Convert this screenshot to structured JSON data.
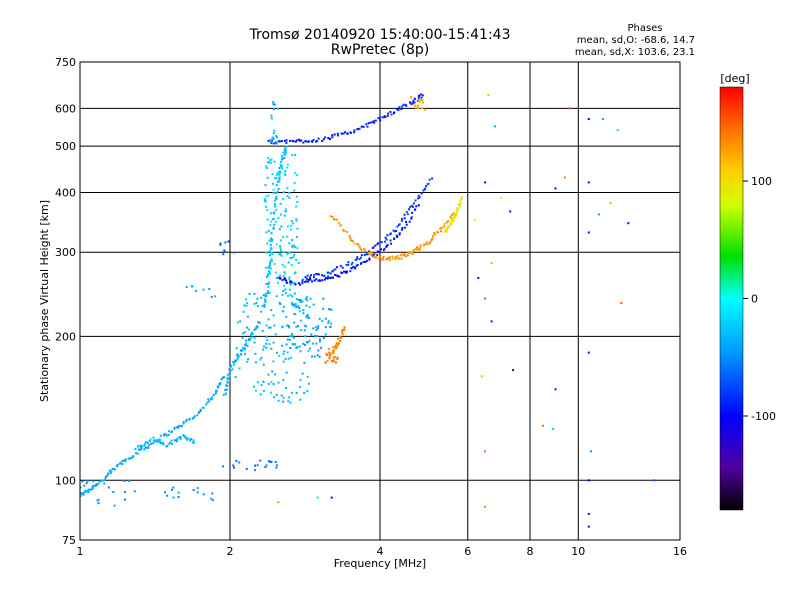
{
  "chart_data": {
    "type": "scatter",
    "title": "Tromsø 20140920 15:40:00-15:41:43",
    "subtitle": "RwPretec (8p)",
    "xlabel": "Frequency [MHz]",
    "ylabel": "Stationary phase Virtual Height [km]",
    "x_scale": "log",
    "y_scale": "log",
    "xlim": [
      1,
      16
    ],
    "ylim": [
      75,
      750
    ],
    "x_ticks": [
      1,
      2,
      4,
      6,
      8,
      10,
      16
    ],
    "y_ticks": [
      75,
      100,
      200,
      300,
      400,
      500,
      600,
      750
    ],
    "grid": true,
    "phase_stats": {
      "header": "Phases",
      "line_o": "mean, sd,O: -68.6, 14.7",
      "line_x": "mean, sd,X: 103.6, 23.1"
    },
    "colorbar": {
      "label": "[deg]",
      "range": [
        -180,
        180
      ],
      "ticks": [
        -100,
        0,
        100
      ]
    },
    "tracks": [
      {
        "x": [
          1.0,
          1.05,
          1.12,
          1.2,
          1.3,
          1.42,
          1.55,
          1.7,
          1.85,
          1.95
        ],
        "y": [
          93,
          96,
          101,
          108,
          114,
          121,
          128,
          136,
          150,
          165
        ],
        "phase": -40
      },
      {
        "x": [
          1.3,
          1.4,
          1.5,
          1.6,
          1.7
        ],
        "y": [
          117,
          122,
          118,
          124,
          120
        ],
        "phase": -30
      },
      {
        "x": [
          1.95,
          2.0,
          2.1,
          2.2,
          2.3
        ],
        "y": [
          150,
          170,
          185,
          200,
          215
        ],
        "phase": -35
      },
      {
        "x": [
          2.35,
          2.4,
          2.45,
          2.5,
          2.55,
          2.6
        ],
        "y": [
          230,
          280,
          350,
          420,
          470,
          500
        ],
        "phase": -30
      },
      {
        "x": [
          2.5,
          2.7,
          3.0,
          3.3,
          3.6,
          4.0,
          4.4,
          4.8
        ],
        "y": [
          265,
          258,
          262,
          268,
          280,
          300,
          330,
          380
        ],
        "phase": -95
      },
      {
        "x": [
          2.8,
          3.1,
          3.5,
          3.9,
          4.3,
          4.7,
          5.1
        ],
        "y": [
          265,
          270,
          285,
          305,
          335,
          380,
          430
        ],
        "phase": -80
      },
      {
        "x": [
          3.2,
          3.5,
          3.8,
          4.1,
          4.4,
          4.7,
          5.0,
          5.3,
          5.7
        ],
        "y": [
          360,
          320,
          298,
          290,
          293,
          302,
          315,
          335,
          365
        ],
        "phase": 130
      },
      {
        "x": [
          5.4,
          5.55,
          5.7,
          5.85
        ],
        "y": [
          330,
          345,
          365,
          390
        ],
        "phase": 95
      },
      {
        "x": [
          2.4,
          2.7,
          3.0,
          3.4,
          3.8,
          4.2,
          4.6,
          4.9
        ],
        "y": [
          510,
          512,
          515,
          530,
          555,
          585,
          615,
          640
        ],
        "phase": -90
      },
      {
        "x": [
          3.2,
          3.3,
          3.4
        ],
        "y": [
          185,
          195,
          210
        ],
        "phase": 135
      }
    ],
    "clusters": [
      {
        "x_range": [
          1.0,
          1.3
        ],
        "y_range": [
          88,
          100
        ],
        "count": 18,
        "phase": -45
      },
      {
        "x_range": [
          1.45,
          1.85
        ],
        "y_range": [
          90,
          98
        ],
        "count": 14,
        "phase": -50
      },
      {
        "x_range": [
          1.9,
          2.5
        ],
        "y_range": [
          105,
          110
        ],
        "count": 18,
        "phase": -60
      },
      {
        "x_range": [
          1.6,
          1.9
        ],
        "y_range": [
          240,
          255
        ],
        "count": 8,
        "phase": -40
      },
      {
        "x_range": [
          1.9,
          2.05
        ],
        "y_range": [
          295,
          320
        ],
        "count": 8,
        "phase": -65
      },
      {
        "x_range": [
          2.05,
          2.9
        ],
        "y_range": [
          145,
          250
        ],
        "count": 160,
        "phase": -30
      },
      {
        "x_range": [
          2.35,
          2.75
        ],
        "y_range": [
          250,
          480
        ],
        "count": 150,
        "phase": -20
      },
      {
        "x_range": [
          2.6,
          3.2
        ],
        "y_range": [
          180,
          240
        ],
        "count": 70,
        "phase": -40
      },
      {
        "x_range": [
          2.4,
          2.5
        ],
        "y_range": [
          505,
          620
        ],
        "count": 18,
        "phase": -35
      },
      {
        "x_range": [
          3.1,
          3.3
        ],
        "y_range": [
          175,
          190
        ],
        "count": 25,
        "phase": 140
      },
      {
        "x_range": [
          4.6,
          4.95
        ],
        "y_range": [
          590,
          640
        ],
        "count": 16,
        "phase": 125
      }
    ],
    "scatter_points": [
      {
        "x": 2.5,
        "y": 90,
        "phase": 140
      },
      {
        "x": 3.0,
        "y": 92,
        "phase": 20
      },
      {
        "x": 3.2,
        "y": 92,
        "phase": -120
      },
      {
        "x": 6.5,
        "y": 88,
        "phase": 150
      },
      {
        "x": 6.5,
        "y": 115,
        "phase": 150
      },
      {
        "x": 6.4,
        "y": 165,
        "phase": 130
      },
      {
        "x": 6.5,
        "y": 240,
        "phase": 150
      },
      {
        "x": 6.3,
        "y": 265,
        "phase": -120
      },
      {
        "x": 6.7,
        "y": 215,
        "phase": -130
      },
      {
        "x": 6.7,
        "y": 285,
        "phase": 110
      },
      {
        "x": 6.5,
        "y": 420,
        "phase": -100
      },
      {
        "x": 6.2,
        "y": 350,
        "phase": 90
      },
      {
        "x": 7.3,
        "y": 365,
        "phase": -110
      },
      {
        "x": 7.0,
        "y": 390,
        "phase": 80
      },
      {
        "x": 6.6,
        "y": 640,
        "phase": 120
      },
      {
        "x": 6.8,
        "y": 550,
        "phase": -40
      },
      {
        "x": 7.4,
        "y": 170,
        "phase": -150
      },
      {
        "x": 8.5,
        "y": 130,
        "phase": 150
      },
      {
        "x": 8.9,
        "y": 128,
        "phase": 30
      },
      {
        "x": 9.0,
        "y": 155,
        "phase": -110
      },
      {
        "x": 9.0,
        "y": 408,
        "phase": -100
      },
      {
        "x": 9.4,
        "y": 430,
        "phase": 140
      },
      {
        "x": 9.6,
        "y": 600,
        "phase": 150
      },
      {
        "x": 10.5,
        "y": 80,
        "phase": -110
      },
      {
        "x": 10.5,
        "y": 85,
        "phase": -100
      },
      {
        "x": 10.5,
        "y": 100,
        "phase": -110
      },
      {
        "x": 10.6,
        "y": 115,
        "phase": -60
      },
      {
        "x": 10.5,
        "y": 185,
        "phase": -110
      },
      {
        "x": 10.5,
        "y": 420,
        "phase": -100
      },
      {
        "x": 10.5,
        "y": 570,
        "phase": -110
      },
      {
        "x": 10.5,
        "y": 330,
        "phase": -95
      },
      {
        "x": 11.2,
        "y": 570,
        "phase": -50
      },
      {
        "x": 11.0,
        "y": 360,
        "phase": -50
      },
      {
        "x": 11.6,
        "y": 380,
        "phase": 120
      },
      {
        "x": 12.0,
        "y": 540,
        "phase": -20
      },
      {
        "x": 12.2,
        "y": 235,
        "phase": 150
      },
      {
        "x": 12.6,
        "y": 345,
        "phase": -100
      },
      {
        "x": 14.2,
        "y": 100,
        "phase": -60
      }
    ]
  }
}
